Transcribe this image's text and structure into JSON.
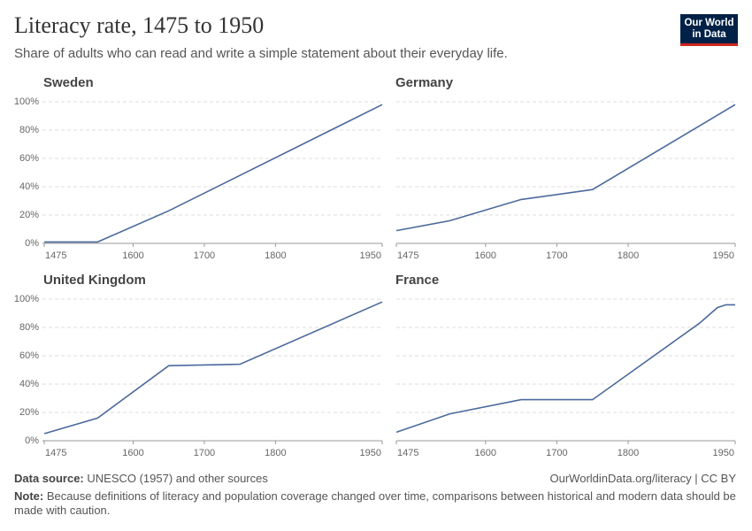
{
  "header": {
    "title": "Literacy rate, 1475 to 1950",
    "subtitle": "Share of adults who can read and write a simple statement about their everyday life.",
    "logo": [
      "Our World",
      "in Data"
    ]
  },
  "footer": {
    "source_label": "Data source:",
    "source": "UNESCO (1957) and other sources",
    "credit": "OurWorldinData.org/literacy | CC BY",
    "note_label": "Note:",
    "note": "Because definitions of literacy and population coverage changed over time, comparisons between historical and modern data should be made with caution."
  },
  "chart_data": [
    {
      "type": "line",
      "title": "Sweden",
      "color": "#4c6a9c",
      "x": [
        1475,
        1550,
        1650,
        1950
      ],
      "values": [
        1,
        1,
        23,
        98
      ],
      "xlim": [
        1475,
        1950
      ],
      "xticks": [
        1475,
        1600,
        1700,
        1800,
        1950
      ],
      "ylim": [
        0,
        100
      ],
      "yticks": [
        {
          "value": 0,
          "label": "0%"
        },
        {
          "value": 20,
          "label": "20%"
        },
        {
          "value": 40,
          "label": "40%"
        },
        {
          "value": 60,
          "label": "60%"
        },
        {
          "value": 80,
          "label": "80%"
        },
        {
          "value": 100,
          "label": "100%"
        }
      ],
      "grid": true
    },
    {
      "type": "line",
      "title": "Germany",
      "color": "#4c6a9c",
      "x": [
        1475,
        1550,
        1650,
        1750,
        1950
      ],
      "values": [
        9,
        16,
        31,
        38,
        98
      ],
      "xlim": [
        1475,
        1950
      ],
      "xticks": [
        1475,
        1600,
        1700,
        1800,
        1950
      ],
      "ylim": [
        0,
        100
      ],
      "yticks": [
        0,
        20,
        40,
        60,
        80,
        100
      ],
      "grid": true
    },
    {
      "type": "line",
      "title": "United Kingdom",
      "color": "#4c6a9c",
      "x": [
        1475,
        1550,
        1650,
        1750,
        1950
      ],
      "values": [
        5,
        16,
        53,
        54,
        98
      ],
      "xlim": [
        1475,
        1950
      ],
      "xticks": [
        1475,
        1600,
        1700,
        1800,
        1950
      ],
      "ylim": [
        0,
        100
      ],
      "yticks": [
        {
          "value": 0,
          "label": "0%"
        },
        {
          "value": 20,
          "label": "20%"
        },
        {
          "value": 40,
          "label": "40%"
        },
        {
          "value": 60,
          "label": "60%"
        },
        {
          "value": 80,
          "label": "80%"
        },
        {
          "value": 100,
          "label": "100%"
        }
      ],
      "grid": true
    },
    {
      "type": "line",
      "title": "France",
      "color": "#4c6a9c",
      "x": [
        1475,
        1550,
        1650,
        1750,
        1900,
        1925,
        1937,
        1950
      ],
      "values": [
        6,
        19,
        29,
        29,
        83,
        94,
        96,
        96
      ],
      "xlim": [
        1475,
        1950
      ],
      "xticks": [
        1475,
        1600,
        1700,
        1800,
        1950
      ],
      "ylim": [
        0,
        100
      ],
      "yticks": [
        0,
        20,
        40,
        60,
        80,
        100
      ],
      "grid": true
    }
  ]
}
